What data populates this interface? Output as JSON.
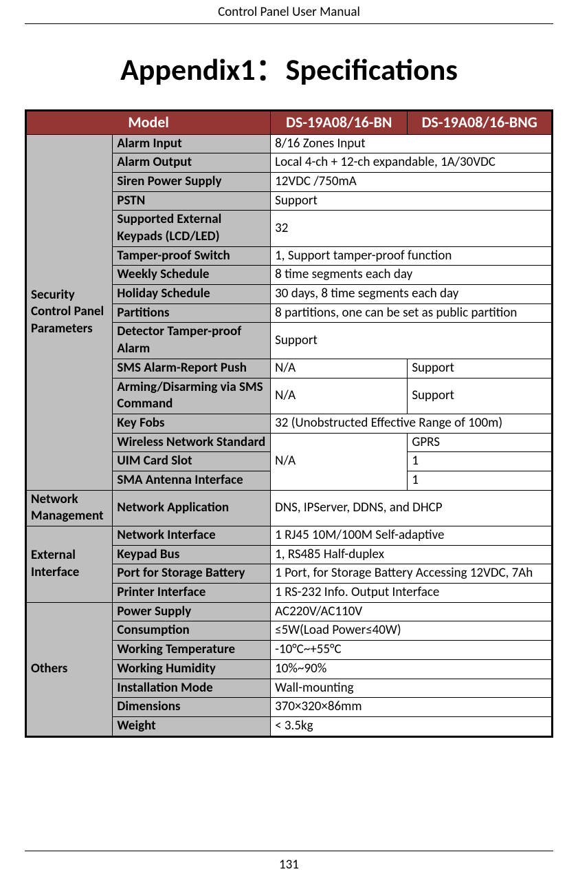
{
  "doc": {
    "header_title": "Control Panel User Manual",
    "heading": "Appendix1：Specifications",
    "page_number": "131"
  },
  "table": {
    "header_cells": {
      "model": "Model",
      "m1": "DS-19A08/16-BN",
      "m2": "DS-19A08/16-BNG"
    },
    "categories": {
      "security": "Security Control Panel Parameters",
      "network": "Network Management",
      "external": "External Interface",
      "others": "Others"
    },
    "labels": {
      "alarm_input": "Alarm Input",
      "alarm_output": "Alarm Output",
      "siren_power": "Siren Power Supply",
      "pstn": "PSTN",
      "ext_keypads": "Supported External Keypads (LCD/LED)",
      "tamper_switch": "Tamper-proof Switch",
      "weekly_sched": "Weekly Schedule",
      "holiday_sched": "Holiday Schedule",
      "partitions": "Partitions",
      "det_tamper": "Detector Tamper-proof Alarm",
      "sms_alarm": "SMS Alarm-Report Push",
      "arming_sms": "Arming/Disarming via SMS Command",
      "key_fobs": "Key Fobs",
      "wireless_std": "Wireless Network Standard",
      "uim_slot": "UIM Card Slot",
      "sma_iface": "SMA Antenna Interface",
      "net_app": "Network Application",
      "net_iface": "Network Interface",
      "keypad_bus": "Keypad Bus",
      "storage_port": "Port for Storage Battery",
      "printer_iface": "Printer Interface",
      "power_supply": "Power Supply",
      "consumption": "Consumption",
      "work_temp": "Working Temperature",
      "work_humid": "Working Humidity",
      "install_mode": "Installation Mode",
      "dimensions": "Dimensions",
      "weight": "Weight"
    },
    "values": {
      "alarm_input": "8/16 Zones Input",
      "alarm_output": "Local 4-ch + 12-ch expandable, 1A/30VDC",
      "siren_power": "12VDC /750mA",
      "pstn": "Support",
      "ext_keypads": "32",
      "tamper_switch": "1, Support tamper-proof function",
      "weekly_sched": "8 time segments each day",
      "holiday_sched": "30 days, 8 time segments each day",
      "partitions": "8 partitions, one can be set as public partition",
      "det_tamper": "Support",
      "sms_alarm_m1": "N/A",
      "sms_alarm_m2": "Support",
      "arming_sms_m1": "N/A",
      "arming_sms_m2": "Support",
      "key_fobs": "32 (Unobstructed Effective Range of 100m)",
      "wireless_na": "N/A",
      "wireless_m2": "GPRS",
      "uim_m2": "1",
      "sma_m2": "1",
      "net_app": "DNS, IPServer, DDNS, and DHCP",
      "net_iface": "1 RJ45 10M/100M Self-adaptive",
      "keypad_bus": "1, RS485 Half-duplex",
      "storage_port": "1 Port, for Storage Battery Accessing 12VDC, 7Ah",
      "printer_iface": "1 RS-232 Info. Output Interface",
      "power_supply": "AC220V/AC110V",
      "consumption": "≤5W(Load Power≤40W)",
      "work_temp": "-10°C~+55°C",
      "work_humid": "10%~90%",
      "install_mode": "Wall-mounting",
      "dimensions": "370×320×86mm",
      "weight": "< 3.5kg"
    }
  },
  "style": {
    "header_bg": "#943634",
    "header_fg": "#ffffff",
    "label_bg": "#bfbfbf",
    "border_color": "#000000"
  }
}
